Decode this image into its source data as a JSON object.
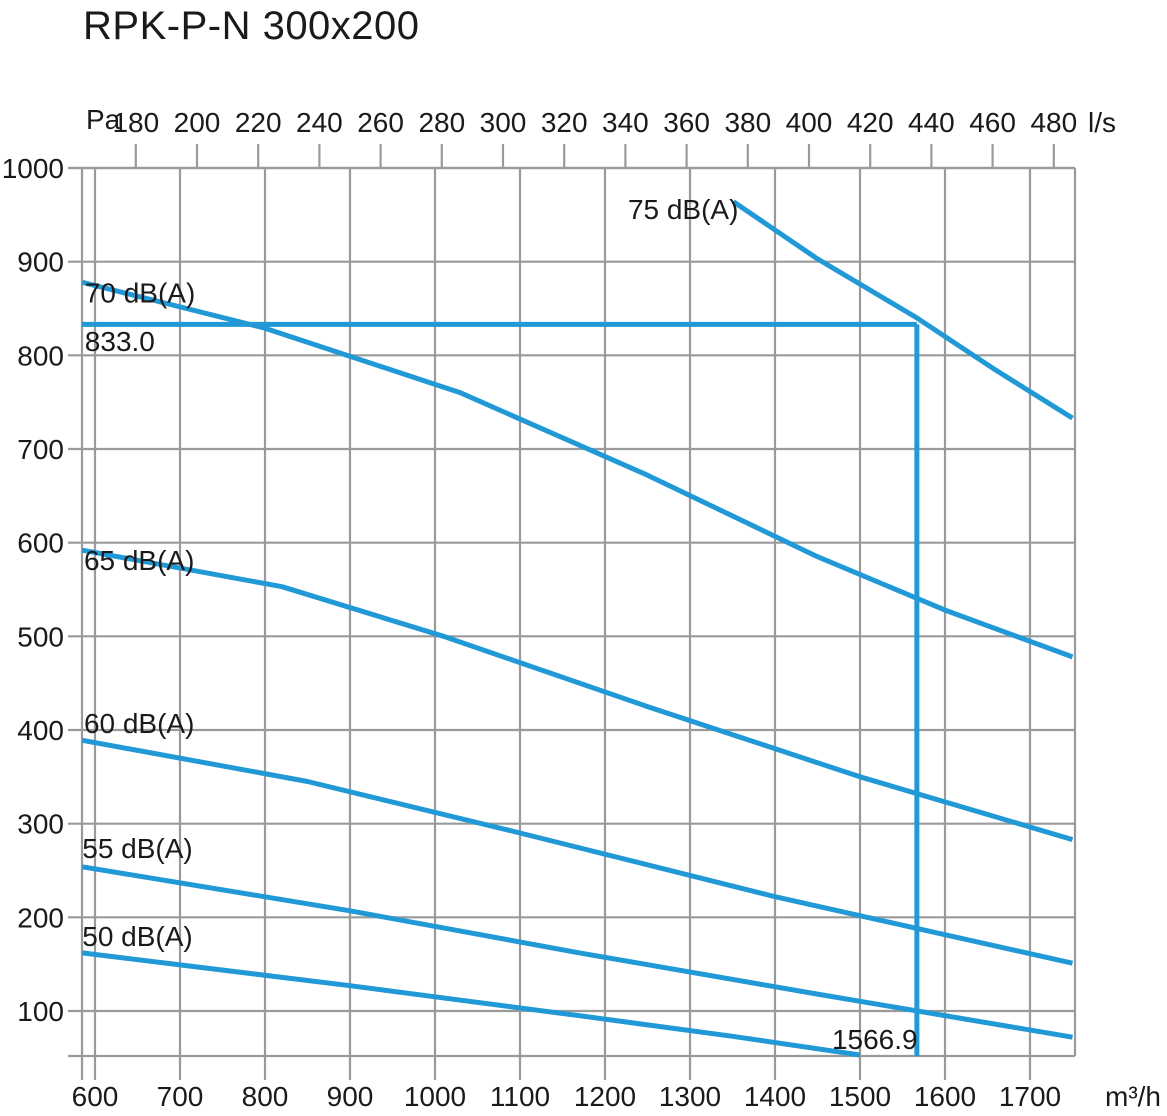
{
  "title": "RPK-P-N 300x200",
  "colors": {
    "curve": "#2199d6",
    "grid": "#9a9a9a",
    "text": "#1a1a1a",
    "background": "#ffffff"
  },
  "chart_data": {
    "type": "line",
    "title": "RPK-P-N 300x200",
    "x_axis_bottom": {
      "unit": "m³/h",
      "ticks": [
        600,
        700,
        800,
        900,
        1000,
        1100,
        1200,
        1300,
        1400,
        1500,
        1600,
        1700
      ],
      "range": [
        584.7,
        1752.9
      ]
    },
    "x_axis_top": {
      "unit": "l/s",
      "ticks": [
        180,
        200,
        220,
        240,
        260,
        280,
        300,
        320,
        340,
        360,
        380,
        400,
        420,
        440,
        460,
        480
      ],
      "note": "top scale: 1 l/s = 3.6 m³/h"
    },
    "y_axis": {
      "unit": "Pa",
      "ticks": [
        100,
        200,
        300,
        400,
        500,
        600,
        700,
        800,
        900,
        1000
      ],
      "range": [
        52,
        1000
      ]
    },
    "grid": true,
    "series": [
      {
        "name": "50 dB(A)",
        "points": [
          [
            585,
            162
          ],
          [
            900,
            127
          ],
          [
            1170,
            95
          ],
          [
            1350,
            73
          ],
          [
            1500,
            53
          ]
        ],
        "label_at": [
          585,
          192
        ]
      },
      {
        "name": "55 dB(A)",
        "points": [
          [
            585,
            254
          ],
          [
            900,
            207
          ],
          [
            1170,
            162
          ],
          [
            1450,
            118
          ],
          [
            1750,
            72
          ]
        ],
        "label_at": [
          585,
          286
        ]
      },
      {
        "name": "60 dB(A)",
        "points": [
          [
            585,
            389
          ],
          [
            850,
            345
          ],
          [
            1100,
            290
          ],
          [
            1400,
            222
          ],
          [
            1750,
            151
          ]
        ],
        "label_at": [
          587,
          419
        ]
      },
      {
        "name": "65 dB(A)",
        "points": [
          [
            585,
            592
          ],
          [
            820,
            553
          ],
          [
            1010,
            500
          ],
          [
            1250,
            425
          ],
          [
            1500,
            350
          ],
          [
            1750,
            283
          ]
        ],
        "label_at": [
          587,
          593
        ]
      },
      {
        "name": "70 dB(A)",
        "points": [
          [
            585,
            878
          ],
          [
            800,
            829
          ],
          [
            1030,
            760
          ],
          [
            1250,
            672
          ],
          [
            1450,
            585
          ],
          [
            1600,
            528
          ],
          [
            1750,
            478
          ]
        ],
        "label_at": [
          588,
          879
        ]
      },
      {
        "name": "75 dB(A)",
        "points": [
          [
            1351,
            964
          ],
          [
            1450,
            903
          ],
          [
            1567,
            840
          ],
          [
            1660,
            784
          ],
          [
            1750,
            733
          ]
        ],
        "label_at": [
          1227,
          968
        ]
      }
    ],
    "operating_point": {
      "flow_m3h": 1566.9,
      "pressure_pa": 833.0,
      "flow_label": "1566.9",
      "pressure_label": "833.0",
      "flow_label_at": [
        1467,
        82
      ],
      "pressure_label_at": [
        588,
        827
      ]
    }
  }
}
